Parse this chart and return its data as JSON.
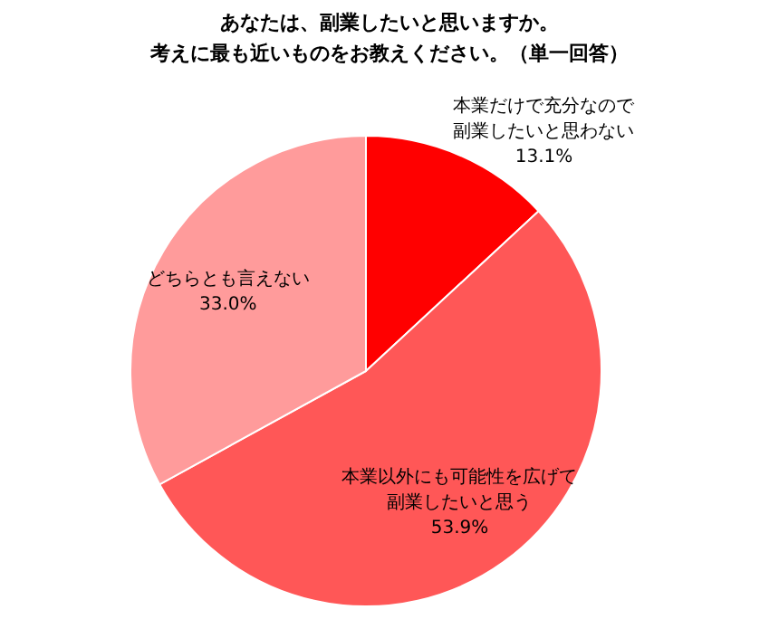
{
  "chart_data": {
    "type": "pie",
    "title": "あなたは、副業したいと思いますか。",
    "subtitle": "考えに最も近いものをお教えください。（単一回答）",
    "categories": [
      "本業だけで充分なので副業したいと思わない",
      "本業以外にも可能性を広げて副業したいと思う",
      "どちらとも言えない"
    ],
    "values": [
      13.1,
      53.9,
      33.0
    ],
    "colors": [
      "#ff0000",
      "#ff5757",
      "#ff9b9b"
    ],
    "value_labels": [
      "13.1%",
      "53.9%",
      "33.0%"
    ]
  }
}
